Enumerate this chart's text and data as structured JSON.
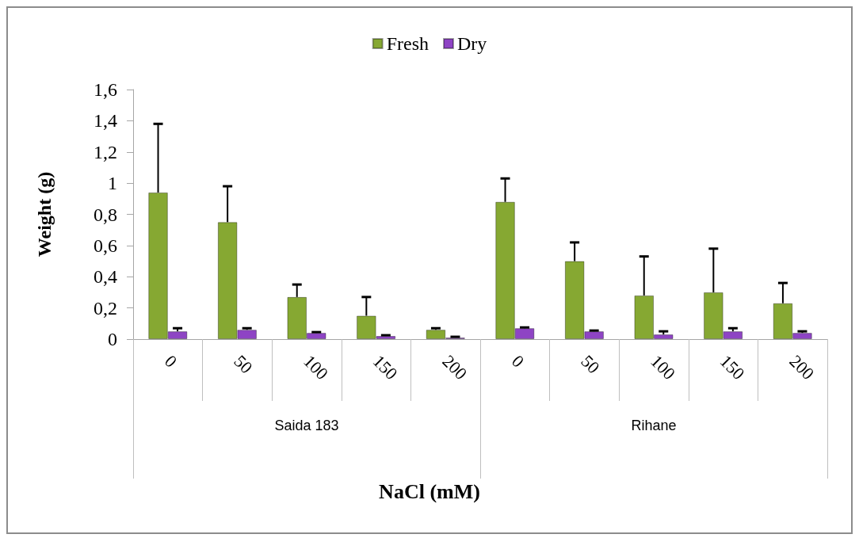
{
  "chart_data": {
    "type": "bar",
    "ylabel": "Weight (g)",
    "xlabel": "NaCl (mM)",
    "categories": [
      "0",
      "50",
      "100",
      "150",
      "200",
      "0",
      "50",
      "100",
      "150",
      "200"
    ],
    "annotations": [
      "Saida 183",
      "Rihane"
    ],
    "series": [
      {
        "name": "Fresh",
        "color": "#86a832",
        "values": [
          0.94,
          0.75,
          0.27,
          0.15,
          0.06,
          0.88,
          0.5,
          0.28,
          0.3,
          0.23
        ],
        "errors": [
          [
            0.94,
            1.38
          ],
          [
            0.75,
            0.98
          ],
          [
            0.27,
            0.35
          ],
          [
            0.15,
            0.27
          ],
          [
            0.06,
            0.07
          ],
          [
            0.88,
            1.03
          ],
          [
            0.5,
            0.62
          ],
          [
            0.28,
            0.53
          ],
          [
            0.3,
            0.58
          ],
          [
            0.23,
            0.36
          ]
        ]
      },
      {
        "name": "Dry",
        "color": "#8e44c4",
        "values": [
          0.05,
          0.06,
          0.04,
          0.02,
          0.01,
          0.07,
          0.05,
          0.03,
          0.05,
          0.04
        ],
        "errors": [
          [
            0.05,
            0.07
          ],
          [
            0.06,
            0.07
          ],
          [
            0.04,
            0.045
          ],
          [
            0.02,
            0.025
          ],
          [
            0.01,
            0.015
          ],
          [
            0.07,
            0.075
          ],
          [
            0.05,
            0.055
          ],
          [
            0.03,
            0.05
          ],
          [
            0.05,
            0.07
          ],
          [
            0.04,
            0.05
          ]
        ]
      }
    ],
    "ylim": [
      0,
      1.6
    ],
    "yticks": [
      0,
      {
        "value": 0.2,
        "label": "0,2"
      },
      {
        "value": 0.4,
        "label": "0,4"
      },
      {
        "value": 0.6,
        "label": "0,6"
      },
      {
        "value": 0.8,
        "label": "0,8"
      },
      1,
      {
        "value": 1.2,
        "label": "1,2"
      },
      {
        "value": 1.4,
        "label": "1,4"
      },
      {
        "value": 1.6,
        "label": "1,6"
      }
    ],
    "grid": false,
    "legend": "top"
  }
}
